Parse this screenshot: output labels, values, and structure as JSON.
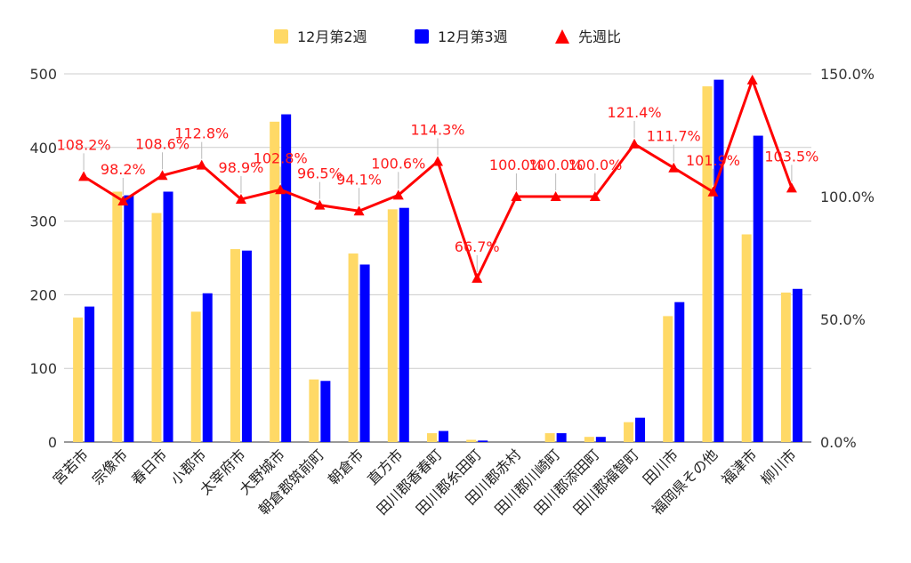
{
  "chart_data": {
    "type": "bar",
    "categories": [
      "宮若市",
      "宗像市",
      "春日市",
      "小郡市",
      "太宰府市",
      "大野城市",
      "朝倉郡筑前町",
      "朝倉市",
      "直方市",
      "田川郡香春町",
      "田川郡糸田町",
      "田川郡赤村",
      "田川郡川崎町",
      "田川郡添田町",
      "田川郡福智町",
      "田川市",
      "福岡県その他",
      "福津市",
      "柳川市"
    ],
    "series": [
      {
        "name": "12月第2週",
        "color": "#ffd966",
        "axis": "left",
        "values": [
          169,
          340,
          311,
          177,
          262,
          435,
          85,
          256,
          316,
          12,
          3,
          0,
          12,
          7,
          27,
          171,
          483,
          282,
          203
        ]
      },
      {
        "name": "12月第3週",
        "color": "#0000ff",
        "axis": "left",
        "values": [
          184,
          335,
          340,
          202,
          260,
          445,
          83,
          241,
          318,
          15,
          2,
          0,
          12,
          7,
          33,
          190,
          492,
          416,
          208
        ]
      },
      {
        "name": "先週比",
        "color": "#ff0000",
        "type": "line",
        "marker": "triangle",
        "axis": "right",
        "values": [
          108.2,
          98.2,
          108.6,
          112.8,
          98.9,
          102.8,
          96.5,
          94.1,
          100.6,
          114.3,
          66.7,
          100.0,
          100.0,
          100.0,
          121.4,
          111.7,
          101.9,
          147.5,
          103.5
        ]
      }
    ],
    "data_labels": [
      "108.2%",
      "98.2%",
      "108.6%",
      "112.8%",
      "98.9%",
      "102.8%",
      "96.5%",
      "94.1%",
      "100.6%",
      "114.3%",
      "66.7%",
      "100.0%",
      "100.0%",
      "100.0%",
      "121.4%",
      "111.7%",
      "101.9%",
      "",
      "103.5%"
    ],
    "y_left": {
      "min": 0,
      "max": 500,
      "ticks": [
        "0",
        "100",
        "200",
        "300",
        "400",
        "500"
      ]
    },
    "y_right": {
      "min": 0,
      "max": 150,
      "ticks": [
        "0.0%",
        "50.0%",
        "100.0%",
        "150.0%"
      ]
    },
    "legend_position": "top",
    "grid": true
  }
}
